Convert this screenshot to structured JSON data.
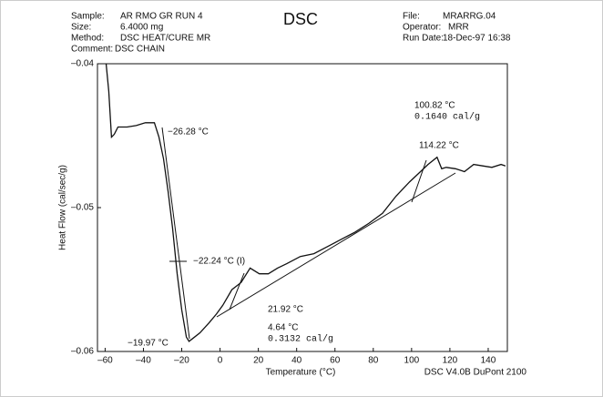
{
  "chart_data": {
    "type": "line",
    "title": "DSC",
    "header": {
      "sample_label": "Sample:",
      "sample": "AR RMO GR RUN 4",
      "size_label": "Size:",
      "size": "6.4000 mg",
      "method_label": "Method:",
      "method": "DSC HEAT/CURE MR",
      "comment_label": "Comment:",
      "comment": "DSC CHAIN",
      "file_label": "File:",
      "file": "MRARRG.04",
      "operator_label": "Operator:",
      "operator": "MRR",
      "run_date_label": "Run Date:",
      "run_date": "18-Dec-97 16:38"
    },
    "x_label": "Temperature (°C)",
    "y_label": "Heat Flow (cal/sec/g)",
    "footer": "DSC V4.0B DuPont 2100",
    "annotations": [
      "−26.28 °C",
      "−22.24 °C (I)",
      "−19.97 °C",
      "21.92 °C",
      "4.64 °C",
      "0.3132 cal/g",
      "100.82 °C",
      "0.1640 cal/g",
      "114.22 °C"
    ],
    "xlim": [
      -64,
      150
    ],
    "ylim": [
      -0.06,
      -0.04
    ],
    "xticks": [
      {
        "value": -60,
        "label": "–60"
      },
      {
        "value": -40,
        "label": "–40"
      },
      {
        "value": -20,
        "label": "–20"
      },
      0,
      20,
      40,
      60,
      80,
      100,
      120,
      140
    ],
    "yticks": [
      {
        "value": -0.04,
        "label": "–0.04"
      },
      {
        "value": -0.05,
        "label": "–0.05"
      },
      {
        "value": -0.06,
        "label": "–0.06"
      }
    ],
    "series": [
      {
        "color": "#111111",
        "x": [
          -59.5,
          -58.1,
          -56.7,
          -55.2,
          -53.3,
          -48.6,
          -43.8,
          -39,
          -34.3,
          -31.9,
          -29.5,
          -27.1,
          -24.8,
          -22.4,
          -20,
          -17.6,
          -16.2,
          -14.3,
          -10.5,
          -5.7,
          -1.9,
          1.4,
          6.2,
          11,
          15.7,
          20.5,
          25.2,
          30,
          34.8,
          41.9,
          49,
          56.2,
          63.3,
          70.5,
          77.6,
          84.8,
          91.9,
          99,
          103.8,
          108.6,
          113.3,
          115.7,
          118.1,
          122.9,
          127.6,
          132.4,
          137.1,
          141.9,
          146.7,
          149
        ],
        "values": [
          -0.04,
          -0.0419,
          -0.0451,
          -0.0449,
          -0.0444,
          -0.0444,
          -0.0443,
          -0.0441,
          -0.0441,
          -0.0451,
          -0.0466,
          -0.0489,
          -0.0514,
          -0.0546,
          -0.0571,
          -0.059,
          -0.0593,
          -0.0591,
          -0.0587,
          -0.058,
          -0.0574,
          -0.0568,
          -0.0557,
          -0.0552,
          -0.0542,
          -0.0546,
          -0.0546,
          -0.0542,
          -0.0539,
          -0.0534,
          -0.0532,
          -0.0527,
          -0.0522,
          -0.0517,
          -0.0511,
          -0.0504,
          -0.0492,
          -0.0482,
          -0.0476,
          -0.047,
          -0.0465,
          -0.0473,
          -0.0472,
          -0.0473,
          -0.0475,
          -0.047,
          -0.0471,
          -0.0472,
          -0.047,
          -0.0471
        ]
      }
    ]
  }
}
